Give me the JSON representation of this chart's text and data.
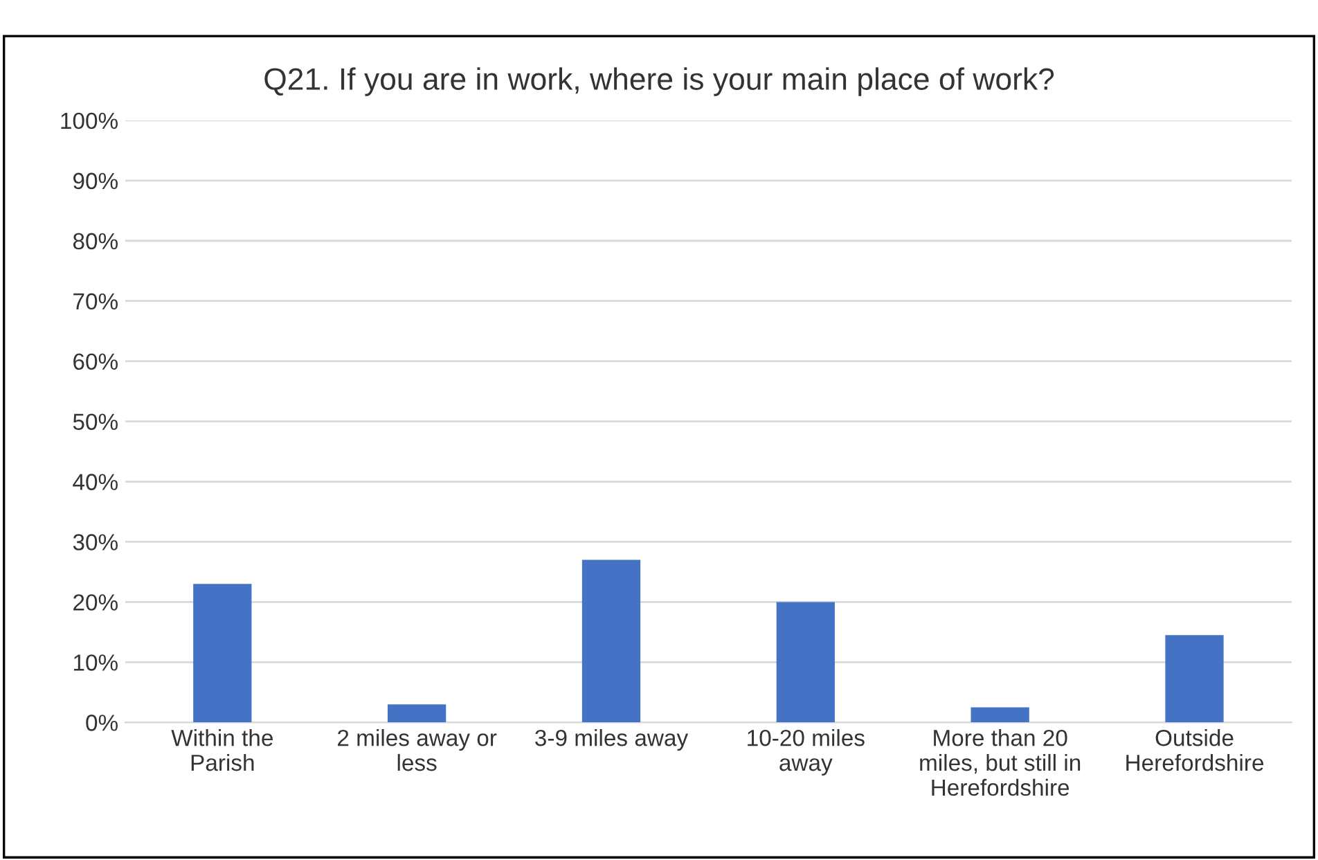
{
  "chart_data": {
    "type": "bar",
    "title": "Q21. If you are in work, where is your main place of work?",
    "categories": [
      "Within the\nParish",
      "2 miles away or\nless",
      "3-9 miles away",
      "10-20 miles\naway",
      "More than 20\nmiles, but still in\nHerefordshire",
      "Outside\nHerefordshire"
    ],
    "values": [
      23,
      3,
      27,
      20,
      2.5,
      14.5
    ],
    "color": "#4472c4",
    "ylim": [
      0,
      100
    ],
    "yticks": [
      {
        "value": 0,
        "label": "0%"
      },
      {
        "value": 10,
        "label": "10%"
      },
      {
        "value": 20,
        "label": "20%"
      },
      {
        "value": 30,
        "label": "30%"
      },
      {
        "value": 40,
        "label": "40%"
      },
      {
        "value": 50,
        "label": "50%"
      },
      {
        "value": 60,
        "label": "60%"
      },
      {
        "value": 70,
        "label": "70%"
      },
      {
        "value": 80,
        "label": "80%"
      },
      {
        "value": 90,
        "label": "90%"
      },
      {
        "value": 100,
        "label": "100%"
      }
    ],
    "grid": "y"
  }
}
